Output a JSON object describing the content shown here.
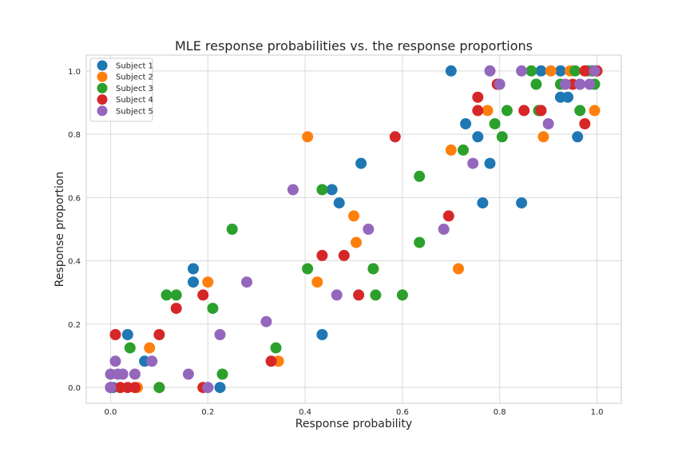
{
  "chart_data": {
    "type": "scatter",
    "title": "MLE response probabilities vs. the response proportions",
    "xlabel": "Response probability",
    "ylabel": "Response proportion",
    "xlim": [
      -0.05,
      1.05
    ],
    "ylim": [
      -0.05,
      1.05
    ],
    "xticks": [
      "0.0",
      "0.2",
      "0.4",
      "0.6",
      "0.8",
      "1.0"
    ],
    "yticks": [
      "0.0",
      "0.2",
      "0.4",
      "0.6",
      "0.8",
      "1.0"
    ],
    "grid": true,
    "legend_position": "top-left",
    "series": [
      {
        "name": "Subject 1",
        "color": "#1f77b4",
        "points": [
          [
            0.0,
            0.0
          ],
          [
            0.005,
            0.0
          ],
          [
            0.035,
            0.167
          ],
          [
            0.07,
            0.083
          ],
          [
            0.17,
            0.375
          ],
          [
            0.17,
            0.333
          ],
          [
            0.2,
            0.0
          ],
          [
            0.225,
            0.0
          ],
          [
            0.435,
            0.167
          ],
          [
            0.455,
            0.625
          ],
          [
            0.47,
            0.583
          ],
          [
            0.515,
            0.708
          ],
          [
            0.7,
            1.0
          ],
          [
            0.73,
            0.833
          ],
          [
            0.755,
            0.792
          ],
          [
            0.765,
            0.583
          ],
          [
            0.78,
            0.708
          ],
          [
            0.845,
            0.583
          ],
          [
            0.885,
            1.0
          ],
          [
            0.925,
            0.917
          ],
          [
            0.94,
            0.917
          ],
          [
            0.925,
            1.0
          ],
          [
            0.96,
            0.792
          ],
          [
            0.98,
            1.0
          ],
          [
            0.99,
            1.0
          ]
        ]
      },
      {
        "name": "Subject 2",
        "color": "#ff7f0e",
        "points": [
          [
            0.0,
            0.0
          ],
          [
            0.02,
            0.0
          ],
          [
            0.055,
            0.0
          ],
          [
            0.08,
            0.125
          ],
          [
            0.1,
            0.0
          ],
          [
            0.2,
            0.333
          ],
          [
            0.405,
            0.792
          ],
          [
            0.425,
            0.333
          ],
          [
            0.5,
            0.542
          ],
          [
            0.505,
            0.458
          ],
          [
            0.345,
            0.083
          ],
          [
            0.7,
            0.75
          ],
          [
            0.715,
            0.375
          ],
          [
            0.775,
            0.875
          ],
          [
            0.89,
            0.792
          ],
          [
            0.905,
            1.0
          ],
          [
            0.945,
            1.0
          ],
          [
            0.975,
            1.0
          ],
          [
            0.995,
            0.875
          ],
          [
            1.0,
            1.0
          ]
        ]
      },
      {
        "name": "Subject 3",
        "color": "#2ca02c",
        "points": [
          [
            0.0,
            0.0
          ],
          [
            0.04,
            0.125
          ],
          [
            0.1,
            0.0
          ],
          [
            0.115,
            0.292
          ],
          [
            0.135,
            0.292
          ],
          [
            0.21,
            0.25
          ],
          [
            0.23,
            0.042
          ],
          [
            0.25,
            0.5
          ],
          [
            0.34,
            0.125
          ],
          [
            0.405,
            0.375
          ],
          [
            0.435,
            0.625
          ],
          [
            0.54,
            0.375
          ],
          [
            0.545,
            0.292
          ],
          [
            0.6,
            0.292
          ],
          [
            0.635,
            0.667
          ],
          [
            0.635,
            0.458
          ],
          [
            0.725,
            0.75
          ],
          [
            0.79,
            0.833
          ],
          [
            0.805,
            0.792
          ],
          [
            0.815,
            0.875
          ],
          [
            0.865,
            1.0
          ],
          [
            0.875,
            0.958
          ],
          [
            0.88,
            0.875
          ],
          [
            0.925,
            0.958
          ],
          [
            0.955,
            1.0
          ],
          [
            0.965,
            0.875
          ],
          [
            0.995,
            0.958
          ],
          [
            0.99,
            1.0
          ]
        ]
      },
      {
        "name": "Subject 4",
        "color": "#d62728",
        "points": [
          [
            0.0,
            0.0
          ],
          [
            0.01,
            0.167
          ],
          [
            0.02,
            0.0
          ],
          [
            0.035,
            0.0
          ],
          [
            0.05,
            0.0
          ],
          [
            0.1,
            0.167
          ],
          [
            0.135,
            0.25
          ],
          [
            0.19,
            0.292
          ],
          [
            0.19,
            0.0
          ],
          [
            0.33,
            0.083
          ],
          [
            0.435,
            0.417
          ],
          [
            0.48,
            0.417
          ],
          [
            0.51,
            0.292
          ],
          [
            0.585,
            0.792
          ],
          [
            0.695,
            0.542
          ],
          [
            0.755,
            0.917
          ],
          [
            0.755,
            0.875
          ],
          [
            0.795,
            0.958
          ],
          [
            0.85,
            0.875
          ],
          [
            0.885,
            0.875
          ],
          [
            0.95,
            0.958
          ],
          [
            0.975,
            0.833
          ],
          [
            0.975,
            1.0
          ],
          [
            1.0,
            1.0
          ]
        ]
      },
      {
        "name": "Subject 5",
        "color": "#9467bd",
        "points": [
          [
            0.0,
            0.042
          ],
          [
            0.0,
            0.0
          ],
          [
            0.01,
            0.083
          ],
          [
            0.015,
            0.042
          ],
          [
            0.025,
            0.042
          ],
          [
            0.05,
            0.042
          ],
          [
            0.085,
            0.083
          ],
          [
            0.16,
            0.042
          ],
          [
            0.2,
            0.0
          ],
          [
            0.225,
            0.167
          ],
          [
            0.28,
            0.333
          ],
          [
            0.32,
            0.208
          ],
          [
            0.375,
            0.625
          ],
          [
            0.465,
            0.292
          ],
          [
            0.53,
            0.5
          ],
          [
            0.685,
            0.5
          ],
          [
            0.745,
            0.708
          ],
          [
            0.78,
            1.0
          ],
          [
            0.8,
            0.958
          ],
          [
            0.845,
            1.0
          ],
          [
            0.9,
            0.833
          ],
          [
            0.935,
            0.958
          ],
          [
            0.965,
            0.958
          ],
          [
            0.985,
            0.958
          ],
          [
            0.995,
            1.0
          ]
        ]
      }
    ]
  }
}
